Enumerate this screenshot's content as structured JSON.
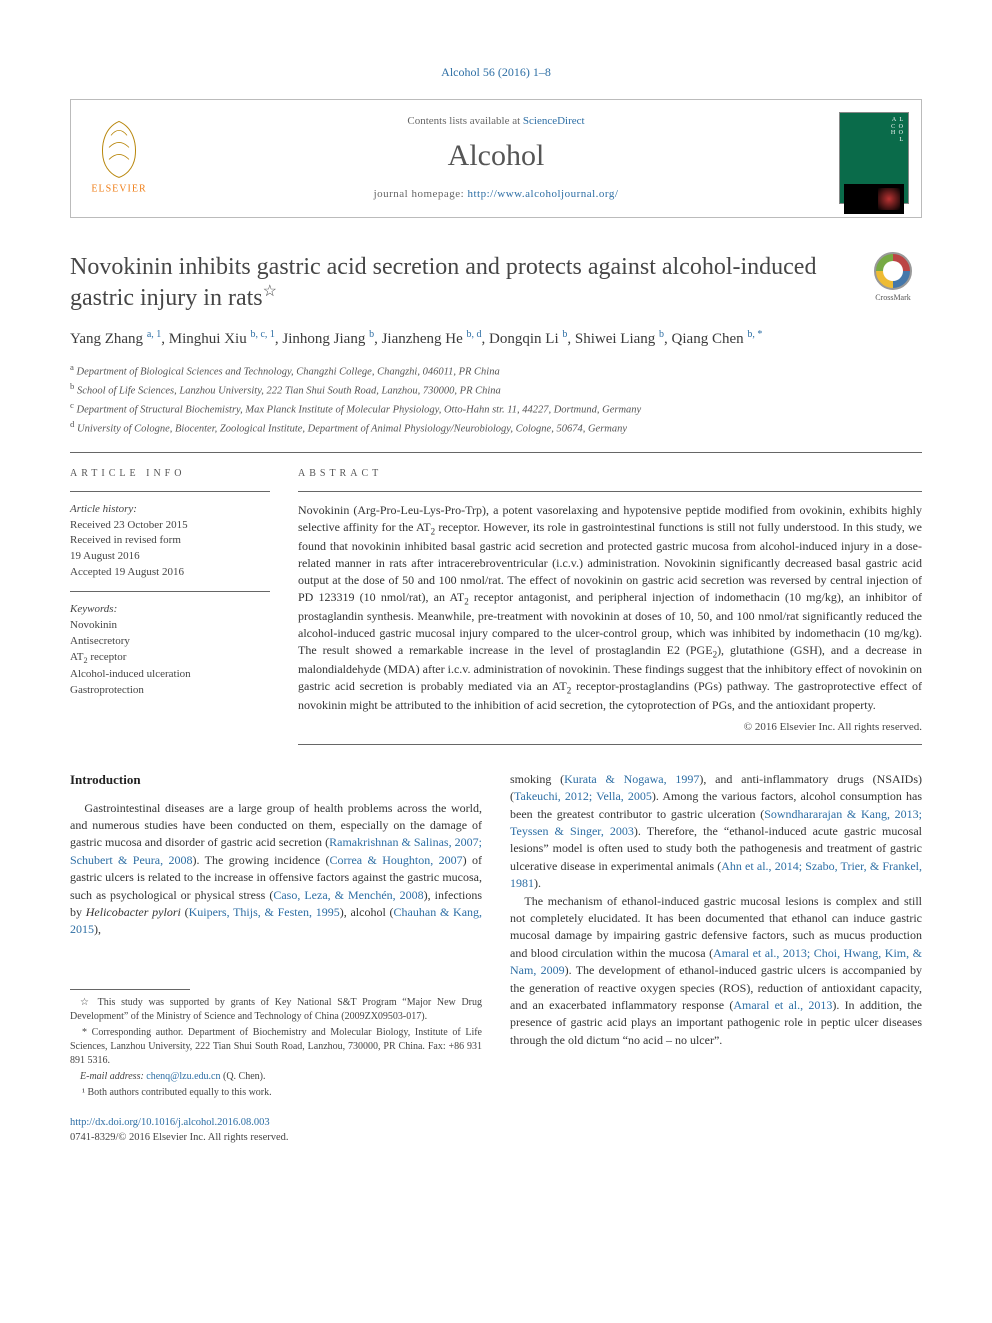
{
  "top_reference": "Alcohol 56 (2016) 1–8",
  "header": {
    "contents_prefix": "Contents lists available at ",
    "contents_link": "ScienceDirect",
    "journal_name": "Alcohol",
    "homepage_prefix": "journal homepage: ",
    "homepage_link": "http://www.alcoholjournal.org/"
  },
  "title": "Novokinin inhibits gastric acid secretion and protects against alcohol-induced gastric injury in rats",
  "title_star": "☆",
  "crossmark_label": "CrossMark",
  "authors_html": "Yang Zhang <sup>a, 1</sup>, Minghui Xiu <sup>b, c, 1</sup>, Jinhong Jiang <sup>b</sup>, Jianzheng He <sup>b, d</sup>, Dongqin Li <sup>b</sup>, Shiwei Liang <sup>b</sup>, Qiang Chen <sup>b, <span class='corr'>*</span></sup>",
  "affiliations": [
    {
      "sup": "a",
      "text": "Department of Biological Sciences and Technology, Changzhi College, Changzhi, 046011, PR China"
    },
    {
      "sup": "b",
      "text": "School of Life Sciences, Lanzhou University, 222 Tian Shui South Road, Lanzhou, 730000, PR China"
    },
    {
      "sup": "c",
      "text": "Department of Structural Biochemistry, Max Planck Institute of Molecular Physiology, Otto-Hahn str. 11, 44227, Dortmund, Germany"
    },
    {
      "sup": "d",
      "text": "University of Cologne, Biocenter, Zoological Institute, Department of Animal Physiology/Neurobiology, Cologne, 50674, Germany"
    }
  ],
  "article_info": {
    "head": "article info",
    "history_label": "Article history:",
    "history": [
      "Received 23 October 2015",
      "Received in revised form",
      "19 August 2016",
      "Accepted 19 August 2016"
    ],
    "keywords_label": "Keywords:",
    "keywords": [
      "Novokinin",
      "Antisecretory",
      "AT₂ receptor",
      "Alcohol-induced ulceration",
      "Gastroprotection"
    ]
  },
  "abstract": {
    "head": "abstract",
    "text": "Novokinin (Arg-Pro-Leu-Lys-Pro-Trp), a potent vasorelaxing and hypotensive peptide modified from ovokinin, exhibits highly selective affinity for the AT₂ receptor. However, its role in gastrointestinal functions is still not fully understood. In this study, we found that novokinin inhibited basal gastric acid secretion and protected gastric mucosa from alcohol-induced injury in a dose-related manner in rats after intracerebroventricular (i.c.v.) administration. Novokinin significantly decreased basal gastric acid output at the dose of 50 and 100 nmol/rat. The effect of novokinin on gastric acid secretion was reversed by central injection of PD 123319 (10 nmol/rat), an AT₂ receptor antagonist, and peripheral injection of indomethacin (10 mg/kg), an inhibitor of prostaglandin synthesis. Meanwhile, pre-treatment with novokinin at doses of 10, 50, and 100 nmol/rat significantly reduced the alcohol-induced gastric mucosal injury compared to the ulcer-control group, which was inhibited by indomethacin (10 mg/kg). The result showed a remarkable increase in the level of prostaglandin E2 (PGE₂), glutathione (GSH), and a decrease in malondialdehyde (MDA) after i.c.v. administration of novokinin. These findings suggest that the inhibitory effect of novokinin on gastric acid secretion is probably mediated via an AT₂ receptor-prostaglandins (PGs) pathway. The gastroprotective effect of novokinin might be attributed to the inhibition of acid secretion, the cytoprotection of PGs, and the antioxidant property.",
    "copyright": "© 2016 Elsevier Inc. All rights reserved."
  },
  "body": {
    "intro_head": "Introduction",
    "left_paragraphs": [
      "Gastrointestinal diseases are a large group of health problems across the world, and numerous studies have been conducted on them, especially on the damage of gastric mucosa and disorder of gastric acid secretion (<a class='cit' href='#'>Ramakrishnan &amp; Salinas, 2007; Schubert &amp; Peura, 2008</a>). The growing incidence (<a class='cit' href='#'>Correa &amp; Houghton, 2007</a>) of gastric ulcers is related to the increase in offensive factors against the gastric mucosa, such as psychological or physical stress (<a class='cit' href='#'>Caso, Leza, &amp; Menchén, 2008</a>), infections by <em>Helicobacter pylori</em> (<a class='cit' href='#'>Kuipers, Thijs, &amp; Festen, 1995</a>), alcohol (<a class='cit' href='#'>Chauhan &amp; Kang, 2015</a>),"
    ],
    "right_paragraphs": [
      "smoking (<a class='cit' href='#'>Kurata &amp; Nogawa, 1997</a>), and anti-inflammatory drugs (NSAIDs) (<a class='cit' href='#'>Takeuchi, 2012; Vella, 2005</a>). Among the various factors, alcohol consumption has been the greatest contributor to gastric ulceration (<a class='cit' href='#'>Sowndhararajan &amp; Kang, 2013; Teyssen &amp; Singer, 2003</a>). Therefore, the “ethanol-induced acute gastric mucosal lesions” model is often used to study both the pathogenesis and treatment of gastric ulcerative disease in experimental animals (<a class='cit' href='#'>Ahn et al., 2014; Szabo, Trier, &amp; Frankel, 1981</a>).",
      "The mechanism of ethanol-induced gastric mucosal lesions is complex and still not completely elucidated. It has been documented that ethanol can induce gastric mucosal damage by impairing gastric defensive factors, such as mucus production and blood circulation within the mucosa (<a class='cit' href='#'>Amaral et al., 2013; Choi, Hwang, Kim, &amp; Nam, 2009</a>). The development of ethanol-induced gastric ulcers is accompanied by the generation of reactive oxygen species (ROS), reduction of antioxidant capacity, and an exacerbated inflammatory response (<a class='cit' href='#'>Amaral et al., 2013</a>). In addition, the presence of gastric acid plays an important pathogenic role in peptic ulcer diseases through the old dictum “no acid – no ulcer”."
    ]
  },
  "footnotes": {
    "funding": "☆ This study was supported by grants of Key National S&T Program “Major New Drug Development” of the Ministry of Science and Technology of China (2009ZX09503-017).",
    "corresponding": "* Corresponding author. Department of Biochemistry and Molecular Biology, Institute of Life Sciences, Lanzhou University, 222 Tian Shui South Road, Lanzhou, 730000, PR China. Fax: +86 931 891 5316.",
    "email_label": "E-mail address: ",
    "email": "chenq@lzu.edu.cn",
    "email_suffix": " (Q. Chen).",
    "equal": "¹ Both authors contributed equally to this work."
  },
  "footer": {
    "doi": "http://dx.doi.org/10.1016/j.alcohol.2016.08.003",
    "issn_line": "0741-8329/© 2016 Elsevier Inc. All rights reserved."
  },
  "colors": {
    "link": "#2d6ea4",
    "text": "#333333",
    "muted": "#666666",
    "rule": "#666666",
    "cover_bg": "#0a6b4a",
    "elsevier_orange": "#ef7f1a"
  },
  "fontsizes": {
    "title": 24,
    "journal": 30,
    "body": 12,
    "authors": 15,
    "affil": 10.5,
    "secthead": 10,
    "footnotes": 10
  }
}
